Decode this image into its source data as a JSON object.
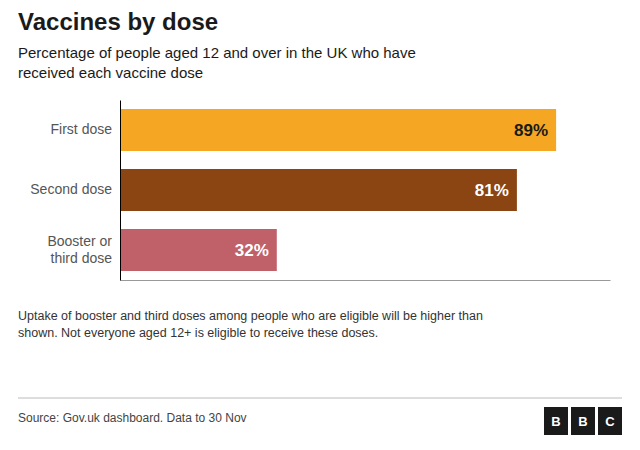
{
  "chart_data": {
    "type": "bar",
    "orientation": "horizontal",
    "title": "Vaccines by dose",
    "subtitle": "Percentage of people aged 12 and over in the UK who have\nreceived each vaccine dose",
    "categories": [
      "First dose",
      "Second dose",
      "Booster or\nthird dose"
    ],
    "values": [
      89,
      81,
      32
    ],
    "value_labels": [
      "89%",
      "81%",
      "32%"
    ],
    "data_labels": true,
    "colors": [
      "#F5A623",
      "#8B4513",
      "#C0616A"
    ],
    "xlim": [
      0,
      100
    ],
    "tick_labels": "y",
    "grid": false,
    "footnote": "Uptake of booster and third doses among people who are eligible will be higher than\nshown. Not everyone aged 12+ is eligible to receive these doses.",
    "source": "Source: Gov.uk dashboard. Data to 30 Nov",
    "logo": [
      "B",
      "B",
      "C"
    ]
  }
}
